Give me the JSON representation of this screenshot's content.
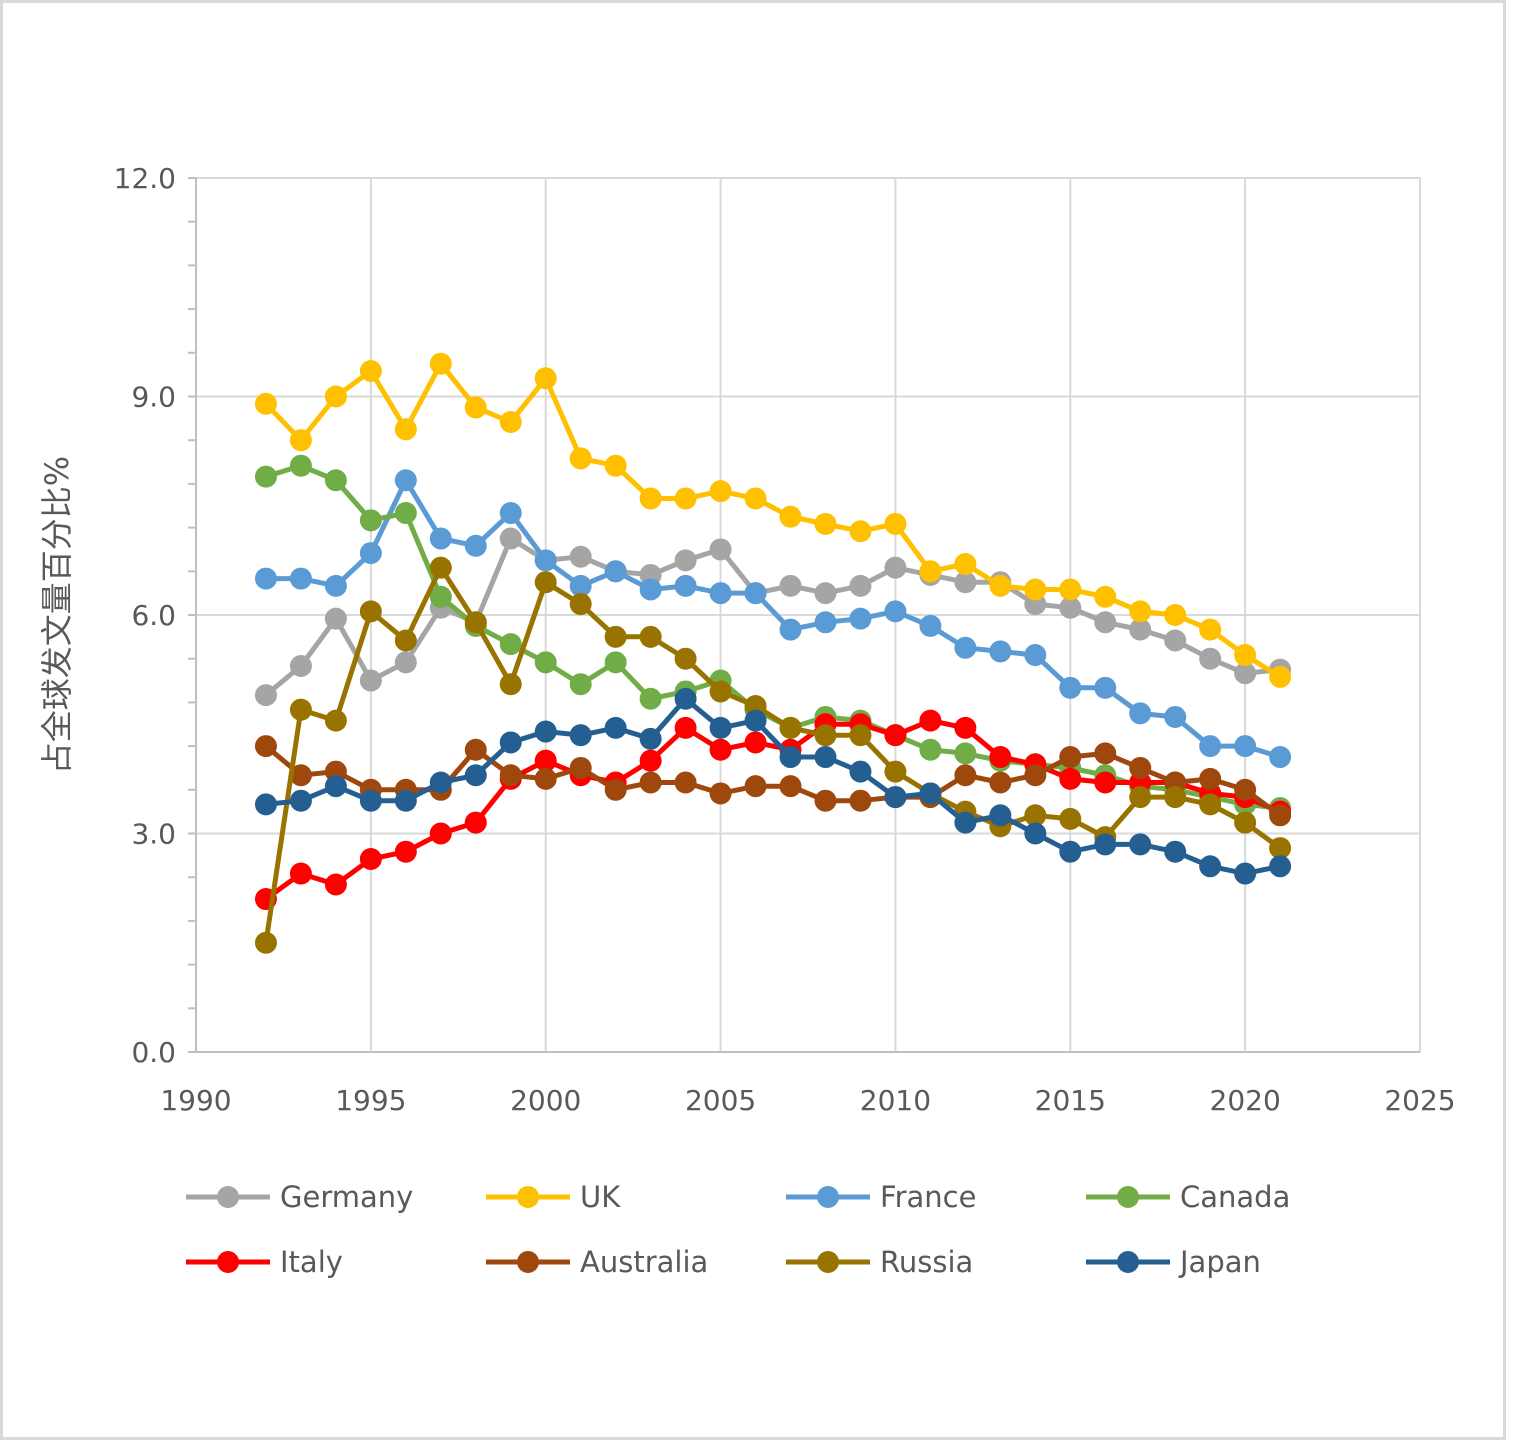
{
  "chart_data": {
    "type": "line",
    "title": "",
    "xlabel": "",
    "ylabel": "占全球发文量百分比%",
    "xlim": [
      1990,
      2025
    ],
    "ylim": [
      0,
      12
    ],
    "x_ticks": [
      "1990",
      "1995",
      "2000",
      "2005",
      "2010",
      "2015",
      "2020",
      "2025"
    ],
    "y_ticks": [
      "0.0",
      "3.0",
      "6.0",
      "9.0",
      "12.0"
    ],
    "grid": true,
    "legend_position": "bottom",
    "x": [
      1992,
      1993,
      1994,
      1995,
      1996,
      1997,
      1998,
      1999,
      2000,
      2001,
      2002,
      2003,
      2004,
      2005,
      2006,
      2007,
      2008,
      2009,
      2010,
      2011,
      2012,
      2013,
      2014,
      2015,
      2016,
      2017,
      2018,
      2019,
      2020,
      2021
    ],
    "series": [
      {
        "name": "Germany",
        "color": "#a5a5a5",
        "values": [
          4.9,
          5.3,
          5.95,
          5.1,
          5.35,
          6.1,
          5.9,
          7.05,
          6.75,
          6.8,
          6.6,
          6.55,
          6.75,
          6.9,
          6.3,
          6.4,
          6.3,
          6.4,
          6.65,
          6.55,
          6.45,
          6.45,
          6.15,
          6.1,
          5.9,
          5.8,
          5.65,
          5.4,
          5.2,
          5.25
        ]
      },
      {
        "name": "UK",
        "color": "#ffc000",
        "values": [
          8.9,
          8.4,
          9.0,
          9.35,
          8.55,
          9.45,
          8.85,
          8.65,
          9.25,
          8.15,
          8.05,
          7.6,
          7.6,
          7.7,
          7.6,
          7.35,
          7.25,
          7.15,
          7.25,
          6.6,
          6.7,
          6.4,
          6.35,
          6.35,
          6.25,
          6.05,
          6.0,
          5.8,
          5.45,
          5.15
        ]
      },
      {
        "name": "France",
        "color": "#5b9bd5",
        "values": [
          6.5,
          6.5,
          6.4,
          6.85,
          7.85,
          7.05,
          6.95,
          7.4,
          6.75,
          6.4,
          6.6,
          6.35,
          6.4,
          6.3,
          6.3,
          5.8,
          5.9,
          5.95,
          6.05,
          5.85,
          5.55,
          5.5,
          5.45,
          5.0,
          5.0,
          4.65,
          4.6,
          4.2,
          4.2,
          4.05
        ]
      },
      {
        "name": "Canada",
        "color": "#70ad47",
        "values": [
          7.9,
          8.05,
          7.85,
          7.3,
          7.4,
          6.25,
          5.85,
          5.6,
          5.35,
          5.05,
          5.35,
          4.85,
          4.95,
          5.1,
          4.7,
          4.45,
          4.6,
          4.55,
          4.35,
          4.15,
          4.1,
          4.0,
          3.95,
          3.9,
          3.8,
          3.65,
          3.6,
          3.5,
          3.4,
          3.35
        ]
      },
      {
        "name": "Italy",
        "color": "#ff0000",
        "values": [
          2.1,
          2.45,
          2.3,
          2.65,
          2.75,
          3.0,
          3.15,
          3.75,
          4.0,
          3.8,
          3.7,
          4.0,
          4.45,
          4.15,
          4.25,
          4.15,
          4.5,
          4.5,
          4.35,
          4.55,
          4.45,
          4.05,
          3.95,
          3.75,
          3.7,
          3.7,
          3.7,
          3.55,
          3.5,
          3.3
        ]
      },
      {
        "name": "Australia",
        "color": "#9e480e",
        "values": [
          4.2,
          3.8,
          3.85,
          3.6,
          3.6,
          3.6,
          4.15,
          3.8,
          3.75,
          3.9,
          3.6,
          3.7,
          3.7,
          3.55,
          3.65,
          3.65,
          3.45,
          3.45,
          3.5,
          3.5,
          3.8,
          3.7,
          3.8,
          4.05,
          4.1,
          3.9,
          3.7,
          3.75,
          3.6,
          3.25
        ]
      },
      {
        "name": "Russia",
        "color": "#997300",
        "values": [
          1.5,
          4.7,
          4.55,
          6.05,
          5.65,
          6.65,
          5.9,
          5.05,
          6.45,
          6.15,
          5.7,
          5.7,
          5.4,
          4.95,
          4.75,
          4.45,
          4.35,
          4.35,
          3.85,
          3.55,
          3.3,
          3.1,
          3.25,
          3.2,
          2.95,
          3.5,
          3.5,
          3.4,
          3.15,
          2.8
        ]
      },
      {
        "name": "Japan",
        "color": "#255e91",
        "values": [
          3.4,
          3.45,
          3.65,
          3.45,
          3.45,
          3.7,
          3.8,
          4.25,
          4.4,
          4.35,
          4.45,
          4.3,
          4.85,
          4.45,
          4.55,
          4.05,
          4.05,
          3.85,
          3.5,
          3.55,
          3.15,
          3.25,
          3.0,
          2.75,
          2.85,
          2.85,
          2.75,
          2.55,
          2.45,
          2.55
        ]
      }
    ]
  }
}
